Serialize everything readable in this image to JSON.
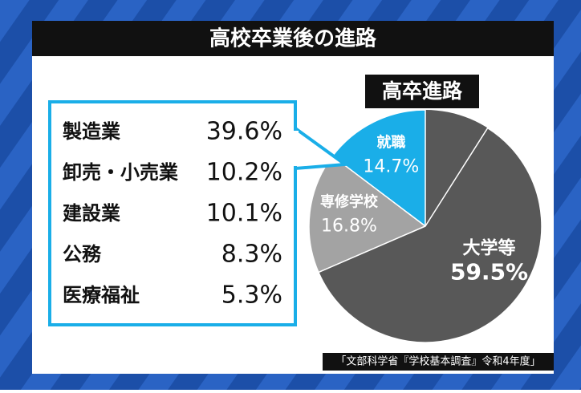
{
  "header": {
    "title": "高校卒業後の進路"
  },
  "chart_data": {
    "type": "pie",
    "title": "高卒進路",
    "categories": [
      "就職",
      "専修学校",
      "大学等"
    ],
    "values": [
      14.7,
      16.8,
      59.5
    ],
    "value_labels": [
      "14.7%",
      "16.8%",
      "59.5%"
    ],
    "colors": [
      "#1aaee8",
      "#a3a3a3",
      "#585858"
    ]
  },
  "breakdown": {
    "categories": [
      "製造業",
      "卸売・小売業",
      "建設業",
      "公務",
      "医療福祉"
    ],
    "values": [
      39.6,
      10.2,
      10.1,
      8.3,
      5.3
    ],
    "value_labels": [
      "39.6%",
      "10.2%",
      "10.1%",
      "8.3%",
      "5.3%"
    ]
  },
  "source": "「文部科学省『学校基本調査』令和4年度」"
}
